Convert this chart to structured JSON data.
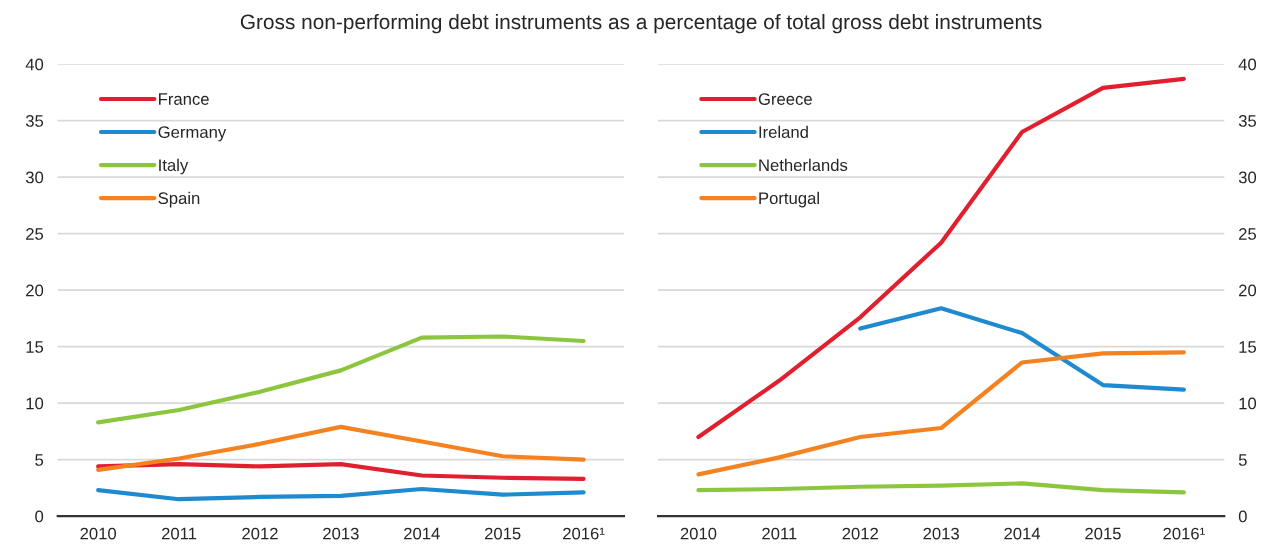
{
  "chart_data": [
    {
      "type": "line",
      "title": "Gross non-performing debt instruments as a percentage of total gross debt instruments",
      "categories": [
        "2010",
        "2011",
        "2012",
        "2013",
        "2014",
        "2015",
        "2016¹"
      ],
      "ylim": [
        0,
        40
      ],
      "yticks": [
        0,
        5,
        10,
        15,
        20,
        25,
        30,
        35,
        40
      ],
      "grid": "y",
      "legend": "top left",
      "line_style": "solid",
      "series": [
        {
          "name": "France",
          "color": "#e0202f",
          "values": [
            4.4,
            4.6,
            4.4,
            4.6,
            3.6,
            3.4,
            3.3
          ]
        },
        {
          "name": "Germany",
          "color": "#1f8ad0",
          "values": [
            2.3,
            1.5,
            1.7,
            1.8,
            2.4,
            1.9,
            2.1
          ]
        },
        {
          "name": "Italy",
          "color": "#8cc63f",
          "values": [
            8.3,
            9.4,
            11.0,
            12.9,
            15.8,
            15.9,
            15.5
          ]
        },
        {
          "name": "Spain",
          "color": "#f58220",
          "values": [
            4.1,
            5.1,
            6.4,
            7.9,
            6.6,
            5.3,
            5.0
          ]
        }
      ]
    },
    {
      "type": "line",
      "categories": [
        "2010",
        "2011",
        "2012",
        "2013",
        "2014",
        "2015",
        "2016¹"
      ],
      "ylim": [
        0,
        40
      ],
      "yticks": [
        0,
        5,
        10,
        15,
        20,
        25,
        30,
        35,
        40
      ],
      "grid": "y",
      "legend": "top left",
      "line_style": "solid",
      "series": [
        {
          "name": "Greece",
          "color": "#e0202f",
          "values": [
            7.0,
            12.0,
            17.6,
            24.2,
            34.0,
            37.9,
            38.7
          ]
        },
        {
          "name": "Ireland",
          "color": "#1f8ad0",
          "values": [
            null,
            null,
            16.6,
            18.4,
            16.2,
            11.6,
            11.2
          ]
        },
        {
          "name": "Netherlands",
          "color": "#8cc63f",
          "values": [
            2.3,
            2.4,
            2.6,
            2.7,
            2.9,
            2.3,
            2.1
          ]
        },
        {
          "name": "Portugal",
          "color": "#f58220",
          "values": [
            3.7,
            5.2,
            7.0,
            7.8,
            13.6,
            14.4,
            14.5
          ]
        }
      ]
    }
  ]
}
